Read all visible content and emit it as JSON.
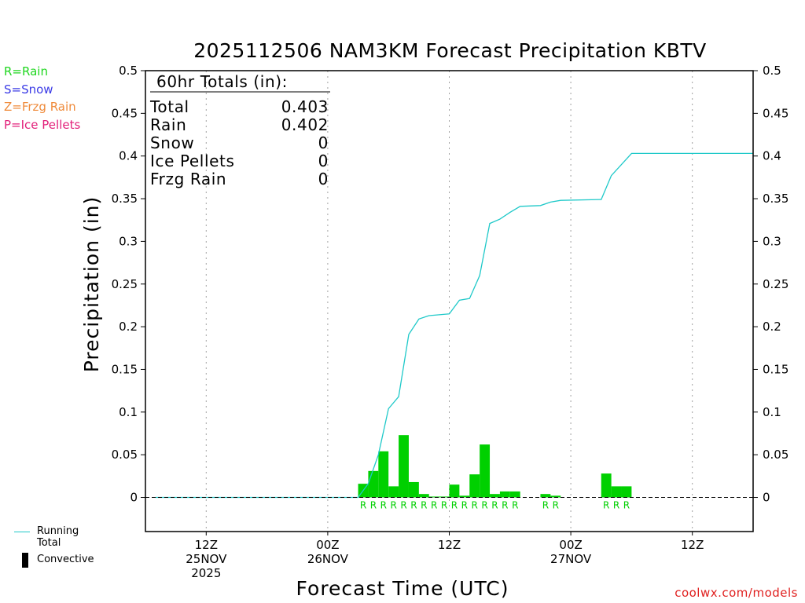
{
  "title": "2025112506 NAM3KM Forecast Precipitation KBTV",
  "credit": "coolwx.com/models",
  "type_legend": [
    {
      "label": "R=Rain",
      "color": "#1ed61e"
    },
    {
      "label": "S=Snow",
      "color": "#3b3be6"
    },
    {
      "label": "Z=Frzg Rain",
      "color": "#ef8a3a"
    },
    {
      "label": "P=Ice Pellets",
      "color": "#e2207a"
    }
  ],
  "series_legend": {
    "running_total": "Running Total",
    "convective": "Convective",
    "running_total_color": "#1fc9c9",
    "convective_color": "#000000"
  },
  "totals": {
    "heading": "60hr Totals (in):",
    "rows": [
      {
        "label": "Total",
        "value": "0.403"
      },
      {
        "label": "Rain",
        "value": "0.402"
      },
      {
        "label": "Snow",
        "value": "0"
      },
      {
        "label": "Ice Pellets",
        "value": "0"
      },
      {
        "label": "Frzg Rain",
        "value": "0"
      }
    ]
  },
  "chart_data": {
    "type": "bar",
    "title": "2025112506 NAM3KM Forecast Precipitation KBTV",
    "xlabel": "Forecast Time (UTC)",
    "ylabel": "Precipitation (in)",
    "ylim": [
      -0.04,
      0.5
    ],
    "xlim": [
      0,
      60
    ],
    "yticks": [
      0,
      0.05,
      0.1,
      0.15,
      0.2,
      0.25,
      0.3,
      0.35,
      0.4,
      0.45,
      0.5
    ],
    "ytick_labels": [
      "0",
      "0.05",
      "0.1",
      "0.15",
      "0.2",
      "0.25",
      "0.3",
      "0.35",
      "0.4",
      "0.45",
      "0.5"
    ],
    "xticks": [
      {
        "hour": 6,
        "lines": [
          "12Z",
          "25NOV",
          "2025"
        ]
      },
      {
        "hour": 18,
        "lines": [
          "00Z",
          "26NOV"
        ]
      },
      {
        "hour": 30,
        "lines": [
          "12Z"
        ]
      },
      {
        "hour": 42,
        "lines": [
          "00Z",
          "27NOV"
        ]
      },
      {
        "hour": 54,
        "lines": [
          "12Z"
        ]
      }
    ],
    "grid": "vertical dotted at tick hours",
    "bar_color": "#00d000",
    "line_color": "#1fc9c9",
    "bars": [
      {
        "hour": 22,
        "value": 0.016,
        "type": "R"
      },
      {
        "hour": 23,
        "value": 0.031,
        "type": "R"
      },
      {
        "hour": 24,
        "value": 0.054,
        "type": "R"
      },
      {
        "hour": 25,
        "value": 0.013,
        "type": "R"
      },
      {
        "hour": 26,
        "value": 0.073,
        "type": "R"
      },
      {
        "hour": 27,
        "value": 0.018,
        "type": "R"
      },
      {
        "hour": 28,
        "value": 0.004,
        "type": "R"
      },
      {
        "hour": 29,
        "value": 0.001,
        "type": "R"
      },
      {
        "hour": 30,
        "value": 0.001,
        "type": "R"
      },
      {
        "hour": 31,
        "value": 0.015,
        "type": "R"
      },
      {
        "hour": 32,
        "value": 0.002,
        "type": "R"
      },
      {
        "hour": 33,
        "value": 0.027,
        "type": "R"
      },
      {
        "hour": 34,
        "value": 0.062,
        "type": "R"
      },
      {
        "hour": 35,
        "value": 0.004,
        "type": "R"
      },
      {
        "hour": 36,
        "value": 0.007,
        "type": "R"
      },
      {
        "hour": 37,
        "value": 0.007,
        "type": "R"
      },
      {
        "hour": 40,
        "value": 0.004,
        "type": "R"
      },
      {
        "hour": 41,
        "value": 0.002,
        "type": "R"
      },
      {
        "hour": 46,
        "value": 0.028,
        "type": "R"
      },
      {
        "hour": 47,
        "value": 0.013,
        "type": "R"
      },
      {
        "hour": 48,
        "value": 0.013,
        "type": "R"
      }
    ],
    "running_total": [
      {
        "hour": 1,
        "value": 0
      },
      {
        "hour": 21,
        "value": 0
      },
      {
        "hour": 22,
        "value": 0.016
      },
      {
        "hour": 23,
        "value": 0.05
      },
      {
        "hour": 24,
        "value": 0.104
      },
      {
        "hour": 25,
        "value": 0.118
      },
      {
        "hour": 26,
        "value": 0.191
      },
      {
        "hour": 27,
        "value": 0.209
      },
      {
        "hour": 28,
        "value": 0.213
      },
      {
        "hour": 29,
        "value": 0.214
      },
      {
        "hour": 30,
        "value": 0.215
      },
      {
        "hour": 31,
        "value": 0.231
      },
      {
        "hour": 32,
        "value": 0.233
      },
      {
        "hour": 33,
        "value": 0.26
      },
      {
        "hour": 34,
        "value": 0.321
      },
      {
        "hour": 35,
        "value": 0.326
      },
      {
        "hour": 36,
        "value": 0.334
      },
      {
        "hour": 37,
        "value": 0.341
      },
      {
        "hour": 39,
        "value": 0.342
      },
      {
        "hour": 40,
        "value": 0.346
      },
      {
        "hour": 41,
        "value": 0.348
      },
      {
        "hour": 45,
        "value": 0.349
      },
      {
        "hour": 46,
        "value": 0.377
      },
      {
        "hour": 47,
        "value": 0.39
      },
      {
        "hour": 48,
        "value": 0.403
      },
      {
        "hour": 60,
        "value": 0.403
      }
    ],
    "zero_line_end_hour": 60
  }
}
